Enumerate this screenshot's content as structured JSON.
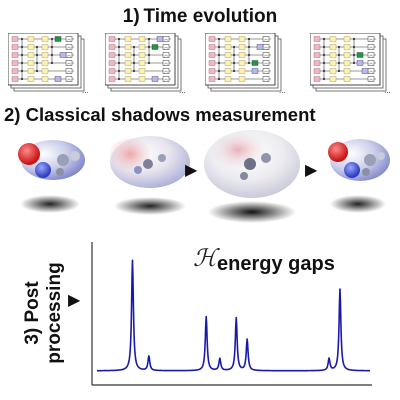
{
  "step1": {
    "title": "1) Time evolution"
  },
  "step2": {
    "title": "2) Classical shadows measurement"
  },
  "step3": {
    "line1": "3) Post",
    "line2": "processing"
  },
  "plot": {
    "symbol": "ℋ",
    "label": "energy gaps",
    "line_color": "#1a1aa8"
  },
  "circuits": {
    "count": 4,
    "ellipsis": "..."
  },
  "colors": {
    "gate_pink": "#f4b6c2",
    "gate_yellow": "#fbf1b0",
    "gate_blue": "#b8b8f0",
    "gate_green": "#1f9a3a",
    "atom_red": "#e23b3b",
    "atom_blue": "#5a6fd6"
  },
  "chart_data": {
    "type": "line",
    "title": "",
    "xlabel": "",
    "ylabel": "",
    "peaks": [
      {
        "x": 0.13,
        "height": 0.92
      },
      {
        "x": 0.19,
        "height": 0.12
      },
      {
        "x": 0.4,
        "height": 0.45
      },
      {
        "x": 0.45,
        "height": 0.1
      },
      {
        "x": 0.51,
        "height": 0.44
      },
      {
        "x": 0.55,
        "height": 0.26
      },
      {
        "x": 0.85,
        "height": 0.1
      },
      {
        "x": 0.89,
        "height": 0.68
      }
    ],
    "xlim": [
      0,
      1
    ],
    "ylim": [
      0,
      1
    ],
    "grid": false
  }
}
